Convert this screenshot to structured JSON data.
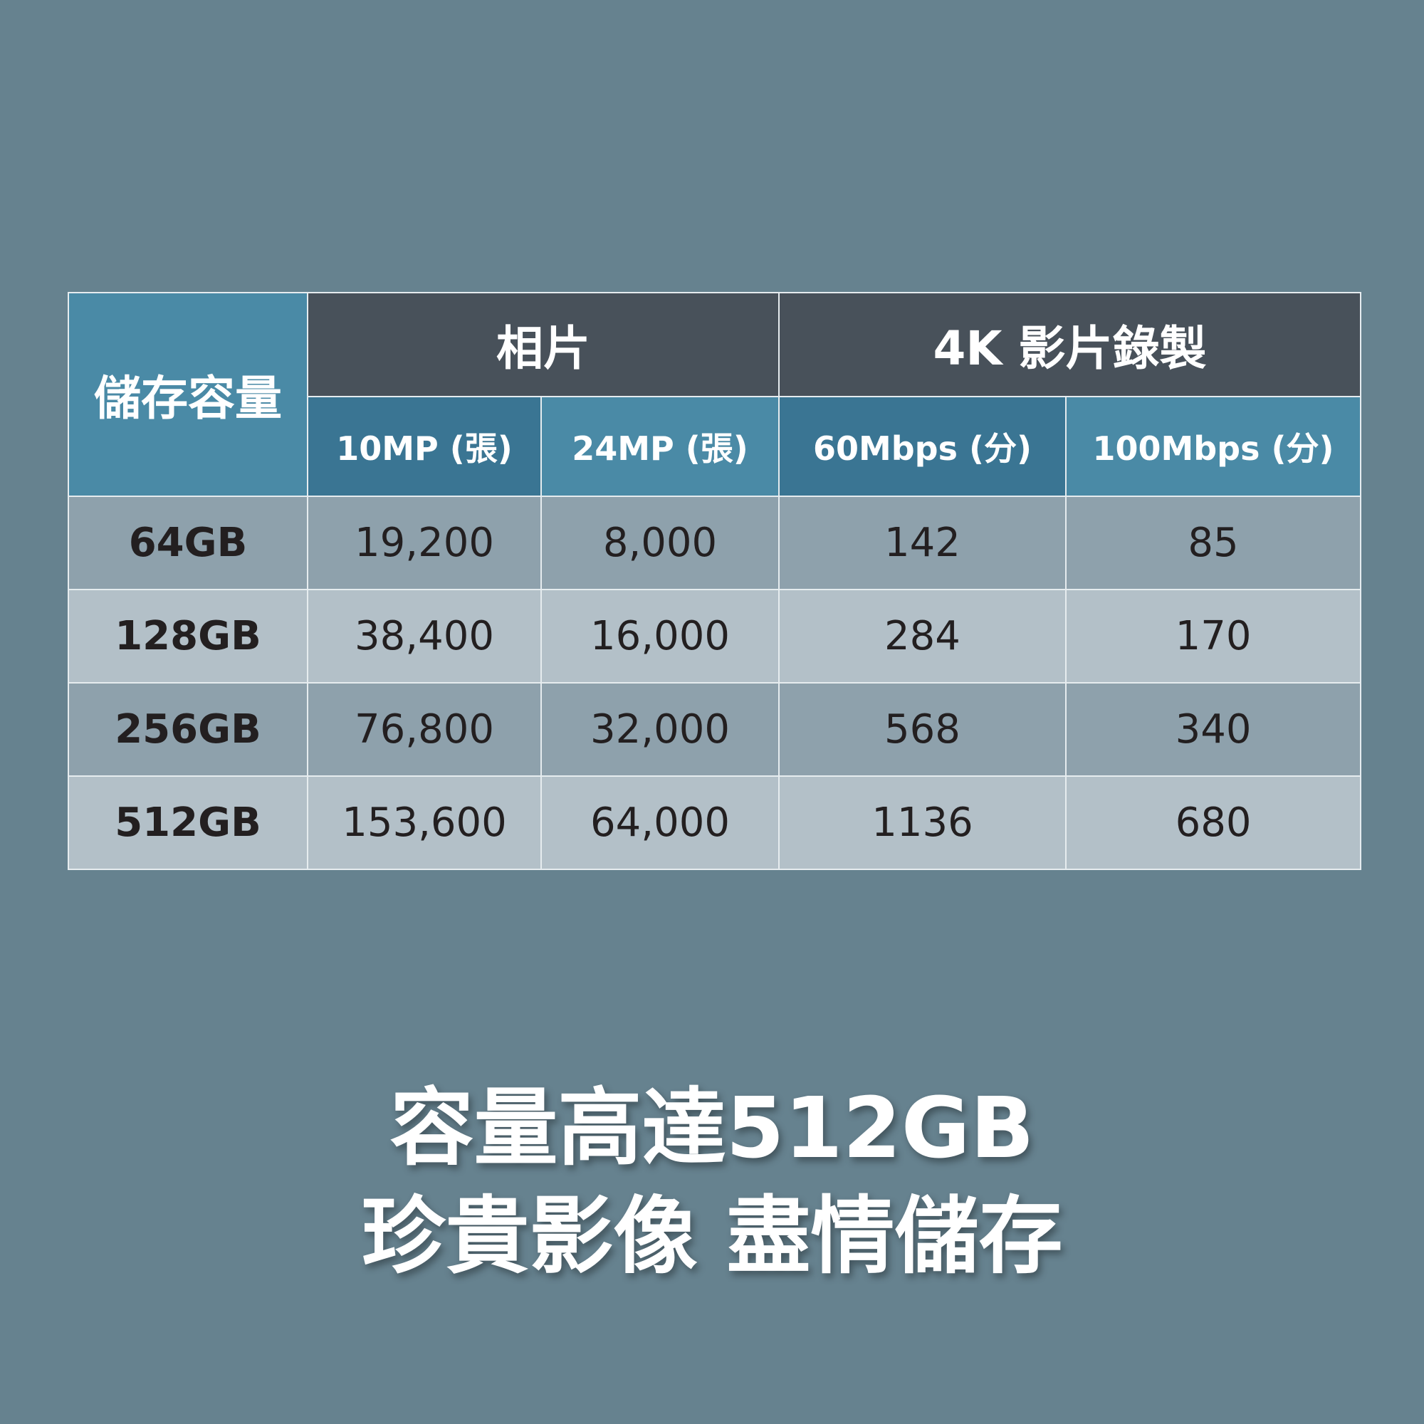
{
  "table": {
    "corner": "儲存容量",
    "groups": [
      "相片",
      "4K 影片錄製"
    ],
    "columns": [
      "10MP (張)",
      "24MP (張)",
      "60Mbps (分)",
      "100Mbps (分)"
    ],
    "rows": [
      [
        "64GB",
        "19,200",
        "8,000",
        "142",
        "85"
      ],
      [
        "128GB",
        "38,400",
        "16,000",
        "284",
        "170"
      ],
      [
        "256GB",
        "76,800",
        "32,000",
        "568",
        "340"
      ],
      [
        "512GB",
        "153,600",
        "64,000",
        "1136",
        "680"
      ]
    ]
  },
  "slogan": {
    "line1": "容量高達512GB",
    "line2": "珍貴影像 盡情儲存"
  },
  "colors": {
    "background": "#66828f",
    "header_dark": "#48515a",
    "header_blue": "#4a8aa6",
    "header_blue_dark": "#3a7593",
    "row_odd": "#8ea1ac",
    "row_even": "#b3c0c8"
  }
}
